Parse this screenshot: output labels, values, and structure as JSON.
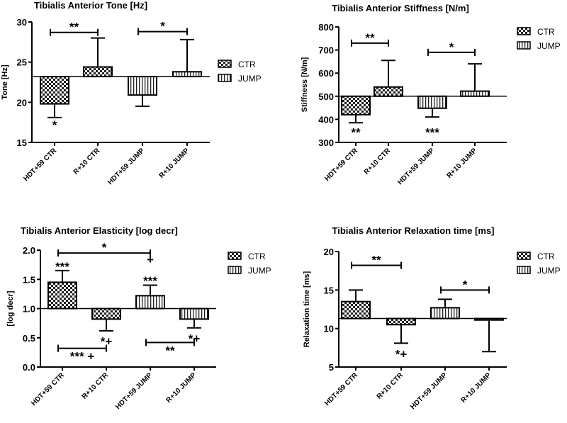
{
  "chart_data": [
    {
      "type": "bar",
      "title": "Tibialis  Anterior Tone [Hz]",
      "ylabel": "Tone [Hz]",
      "ylim": [
        15,
        30
      ],
      "yticks": [
        "15",
        "20",
        "25",
        "30"
      ],
      "baseline": 23.2,
      "categories": [
        "HDT+59 CTR",
        "R+10 CTR",
        "HDT+59 JUMP",
        "R+10 JUMP"
      ],
      "groups": [
        "CTR",
        "CTR",
        "JUMP",
        "JUMP"
      ],
      "values": [
        19.8,
        24.4,
        20.9,
        23.8
      ],
      "error_ends": [
        18.1,
        28.0,
        19.5,
        27.8
      ],
      "legend": [
        "CTR",
        "JUMP"
      ],
      "legend_position": "right",
      "bar_annotations": [
        {
          "cat": 0,
          "y": 17.2,
          "text": "*"
        }
      ],
      "brackets": [
        {
          "from": 0,
          "to": 1,
          "y": 28.7,
          "text": "**",
          "text_pos": "above"
        },
        {
          "from": 2,
          "to": 3,
          "y": 28.8,
          "text": "*",
          "text_pos": "above"
        }
      ]
    },
    {
      "type": "bar",
      "title": "Tibialis Anterior Stiffness [N/m]",
      "ylabel": "Stiffness [N/m]",
      "ylim": [
        300,
        800
      ],
      "yticks": [
        "300",
        "400",
        "500",
        "600",
        "700",
        "800"
      ],
      "baseline": 500,
      "categories": [
        "HDT+59 CTR",
        "R+10 CTR",
        "HDT+59 JUMP",
        "R+10 JUMP"
      ],
      "groups": [
        "CTR",
        "CTR",
        "JUMP",
        "JUMP"
      ],
      "values": [
        420,
        540,
        448,
        522
      ],
      "error_ends": [
        385,
        655,
        410,
        640
      ],
      "legend": [
        "CTR",
        "JUMP"
      ],
      "legend_position": "right",
      "bar_annotations": [
        {
          "cat": 0,
          "y": 345,
          "text": "**"
        },
        {
          "cat": 2,
          "y": 345,
          "text": "***"
        }
      ],
      "brackets": [
        {
          "from": 0,
          "to": 1,
          "y": 730,
          "text": "**",
          "text_pos": "above"
        },
        {
          "from": 2,
          "to": 3,
          "y": 690,
          "text": "*",
          "text_pos": "above"
        }
      ]
    },
    {
      "type": "bar",
      "title": "Tibialis Anterior Elasticity [log decr]",
      "ylabel": "[log decr]",
      "ylim": [
        0,
        2
      ],
      "yticks": [
        "0.0",
        "0.5",
        "1.0",
        "1.5",
        "2.0"
      ],
      "baseline": 1.0,
      "categories": [
        "HDT+59 CTR",
        "R+10 CTR",
        "HDT+59 JUMP",
        "R+10 JUMP"
      ],
      "groups": [
        "CTR",
        "CTR",
        "JUMP",
        "JUMP"
      ],
      "values": [
        1.45,
        0.82,
        1.22,
        0.82
      ],
      "error_ends": [
        1.65,
        0.62,
        1.4,
        0.67
      ],
      "legend": [
        "CTR",
        "JUMP"
      ],
      "legend_position": "right",
      "bar_annotations": [
        {
          "cat": 0,
          "y": 1.72,
          "text": "***"
        },
        {
          "cat": 1,
          "y": 0.44,
          "text": "*+"
        },
        {
          "cat": 2,
          "y": 1.84,
          "text": "+"
        },
        {
          "cat": 2,
          "y": 1.48,
          "text": "***"
        },
        {
          "cat": 3,
          "y": 0.49,
          "text": "*+"
        }
      ],
      "brackets": [
        {
          "from": 0,
          "to": 2,
          "y": 1.95,
          "text": "*",
          "text_pos": "above"
        },
        {
          "from": 0,
          "to": 1,
          "y": 0.32,
          "text": "*** +",
          "text_pos": "below"
        },
        {
          "from": 2,
          "to": 3,
          "y": 0.42,
          "text": "**",
          "text_pos": "below"
        }
      ]
    },
    {
      "type": "bar",
      "title": "Tibialis Anterior Relaxation time [ms]",
      "ylabel": "Relaxation time [ms]",
      "ylim": [
        5,
        20
      ],
      "yticks": [
        "5",
        "10",
        "15",
        "20"
      ],
      "baseline": 11.3,
      "categories": [
        "HDT+59 CTR",
        "R+10 CTR",
        "HDT+59 JUMP",
        "R+10 JUMP"
      ],
      "groups": [
        "CTR",
        "CTR",
        "JUMP",
        "JUMP"
      ],
      "values": [
        13.5,
        10.5,
        12.7,
        11.1
      ],
      "error_ends": [
        15.0,
        8.1,
        13.8,
        7.0
      ],
      "legend": [
        "CTR",
        "JUMP"
      ],
      "legend_position": "right",
      "bar_annotations": [
        {
          "cat": 1,
          "y": 6.7,
          "text": "*+"
        }
      ],
      "brackets": [
        {
          "from": 0,
          "to": 1,
          "y": 18.2,
          "text": "**",
          "text_pos": "above"
        },
        {
          "from": 2,
          "to": 3,
          "y": 15.0,
          "text": "*",
          "text_pos": "above"
        }
      ]
    }
  ]
}
